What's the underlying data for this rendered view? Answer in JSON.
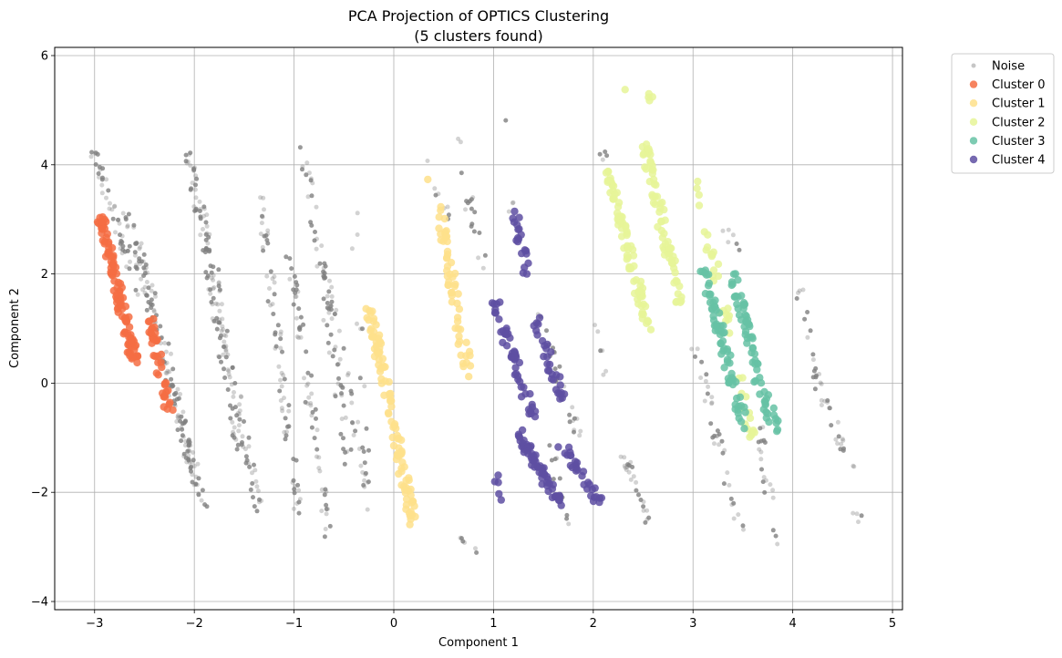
{
  "chart_data": {
    "type": "scatter",
    "title": "PCA Projection of OPTICS Clustering",
    "subtitle": "(5 clusters found)",
    "xlabel": "Component 1",
    "ylabel": "Component 2",
    "xlim": [
      -3.4,
      5.1
    ],
    "ylim": [
      -4.15,
      6.15
    ],
    "xticks": [
      -3,
      -2,
      -1,
      0,
      1,
      2,
      3,
      4,
      5
    ],
    "xtick_labels": [
      "−3",
      "−2",
      "−1",
      "0",
      "1",
      "2",
      "3",
      "4",
      "5"
    ],
    "yticks": [
      -4,
      -2,
      0,
      2,
      4,
      6
    ],
    "ytick_labels": [
      "−4",
      "−2",
      "0",
      "2",
      "4",
      "6"
    ],
    "grid": true,
    "legend_position": "outside-top-right",
    "series": [
      {
        "name": "Noise",
        "color": "#808080",
        "marker": "small-circle",
        "bands": [
          {
            "x0": -3.05,
            "y0": 4.5,
            "x1": -2.55,
            "y1": 1.5,
            "n": 45
          },
          {
            "x0": -2.7,
            "y0": 3.2,
            "x1": -2.2,
            "y1": -0.3,
            "n": 60
          },
          {
            "x0": -2.6,
            "y0": 2.9,
            "x1": -2.0,
            "y1": -1.6,
            "n": 70
          },
          {
            "x0": -2.05,
            "y0": 4.2,
            "x1": -1.55,
            "y1": -1.3,
            "n": 90
          },
          {
            "x0": -1.95,
            "y0": 3.5,
            "x1": -1.35,
            "y1": -2.4,
            "n": 80
          },
          {
            "x0": -2.2,
            "y0": -0.5,
            "x1": -1.9,
            "y1": -2.3,
            "n": 35
          },
          {
            "x0": -1.35,
            "y0": 3.6,
            "x1": -0.95,
            "y1": -2.5,
            "n": 70
          },
          {
            "x0": -1.05,
            "y0": 2.4,
            "x1": -0.65,
            "y1": -2.8,
            "n": 60
          },
          {
            "x0": -0.9,
            "y0": 4.3,
            "x1": -0.45,
            "y1": -1.5,
            "n": 60
          },
          {
            "x0": -0.75,
            "y0": 2.5,
            "x1": -0.25,
            "y1": -2.0,
            "n": 40
          },
          {
            "x0": -0.4,
            "y0": 3.2,
            "x1": -0.25,
            "y1": -2.5,
            "n": 15
          },
          {
            "x0": 0.3,
            "y0": 4.1,
            "x1": 0.55,
            "y1": 3.0,
            "n": 8
          },
          {
            "x0": 0.65,
            "y0": 4.6,
            "x1": 0.75,
            "y1": 3.0,
            "n": 6
          },
          {
            "x0": 0.75,
            "y0": 3.4,
            "x1": 0.9,
            "y1": 2.1,
            "n": 12
          },
          {
            "x0": 0.6,
            "y0": -2.7,
            "x1": 0.8,
            "y1": -3.1,
            "n": 6
          },
          {
            "x0": 1.1,
            "y0": 4.8,
            "x1": 1.2,
            "y1": 3.0,
            "n": 4
          },
          {
            "x0": 1.45,
            "y0": 1.2,
            "x1": 1.85,
            "y1": -1.0,
            "n": 30
          },
          {
            "x0": 1.55,
            "y0": -1.0,
            "x1": 1.75,
            "y1": -2.8,
            "n": 15
          },
          {
            "x0": 2.05,
            "y0": 1.0,
            "x1": 2.15,
            "y1": 0.1,
            "n": 6
          },
          {
            "x0": 2.3,
            "y0": -1.3,
            "x1": 2.55,
            "y1": -2.6,
            "n": 25
          },
          {
            "x0": 2.05,
            "y0": 4.4,
            "x1": 2.2,
            "y1": 3.8,
            "n": 4
          },
          {
            "x0": 3.0,
            "y0": 0.8,
            "x1": 3.5,
            "y1": -2.9,
            "n": 35
          },
          {
            "x0": 3.3,
            "y0": 2.9,
            "x1": 3.45,
            "y1": 2.4,
            "n": 6
          },
          {
            "x0": 3.65,
            "y0": -0.7,
            "x1": 3.85,
            "y1": -3.0,
            "n": 20
          },
          {
            "x0": 4.05,
            "y0": 1.8,
            "x1": 4.3,
            "y1": -0.5,
            "n": 14
          },
          {
            "x0": 4.2,
            "y0": 0.2,
            "x1": 4.6,
            "y1": -1.6,
            "n": 25
          },
          {
            "x0": 4.6,
            "y0": -2.3,
            "x1": 4.7,
            "y1": -2.55,
            "n": 4
          }
        ]
      },
      {
        "name": "Cluster 0",
        "color": "#f46d43",
        "bands": [
          {
            "x0": -2.95,
            "y0": 3.1,
            "x1": -2.6,
            "y1": 0.4,
            "n": 110
          },
          {
            "x0": -2.45,
            "y0": 1.2,
            "x1": -2.25,
            "y1": -0.5,
            "n": 40
          }
        ]
      },
      {
        "name": "Cluster 1",
        "color": "#fee08b",
        "bands": [
          {
            "x0": -0.25,
            "y0": 1.4,
            "x1": 0.2,
            "y1": -2.55,
            "n": 100
          },
          {
            "x0": 0.45,
            "y0": 3.2,
            "x1": 0.75,
            "y1": 0.15,
            "n": 55
          },
          {
            "x0": 0.35,
            "y0": 3.75,
            "x1": 0.4,
            "y1": 3.7,
            "n": 1
          }
        ]
      },
      {
        "name": "Cluster 2",
        "color": "#e6f598",
        "bands": [
          {
            "x0": 2.15,
            "y0": 3.9,
            "x1": 2.55,
            "y1": 1.0,
            "n": 80
          },
          {
            "x0": 2.5,
            "y0": 4.4,
            "x1": 2.9,
            "y1": 1.3,
            "n": 70
          },
          {
            "x0": 2.25,
            "y0": 5.5,
            "x1": 2.65,
            "y1": 5.2,
            "n": 5
          },
          {
            "x0": 3.0,
            "y0": 3.9,
            "x1": 3.6,
            "y1": -1.1,
            "n": 40
          }
        ]
      },
      {
        "name": "Cluster 3",
        "color": "#66c2a5",
        "bands": [
          {
            "x0": 3.1,
            "y0": 2.1,
            "x1": 3.4,
            "y1": 0.0,
            "n": 50
          },
          {
            "x0": 3.4,
            "y0": 2.0,
            "x1": 3.65,
            "y1": 0.2,
            "n": 45
          },
          {
            "x0": 3.35,
            "y0": 0.2,
            "x1": 3.55,
            "y1": -0.9,
            "n": 20
          },
          {
            "x0": 3.6,
            "y0": 0.3,
            "x1": 3.85,
            "y1": -0.9,
            "n": 25
          }
        ]
      },
      {
        "name": "Cluster 4",
        "color": "#5e4fa2",
        "bands": [
          {
            "x0": 1.2,
            "y0": 3.2,
            "x1": 1.35,
            "y1": 1.9,
            "n": 20
          },
          {
            "x0": 1.0,
            "y0": 1.5,
            "x1": 1.4,
            "y1": -0.6,
            "n": 50
          },
          {
            "x0": 1.4,
            "y0": 1.3,
            "x1": 1.7,
            "y1": -0.3,
            "n": 30
          },
          {
            "x0": 1.25,
            "y0": -0.9,
            "x1": 1.65,
            "y1": -2.2,
            "n": 60
          },
          {
            "x0": 1.65,
            "y0": -1.0,
            "x1": 2.05,
            "y1": -2.2,
            "n": 30
          },
          {
            "x0": 1.0,
            "y0": -1.7,
            "x1": 1.1,
            "y1": -2.1,
            "n": 5
          }
        ]
      }
    ]
  }
}
